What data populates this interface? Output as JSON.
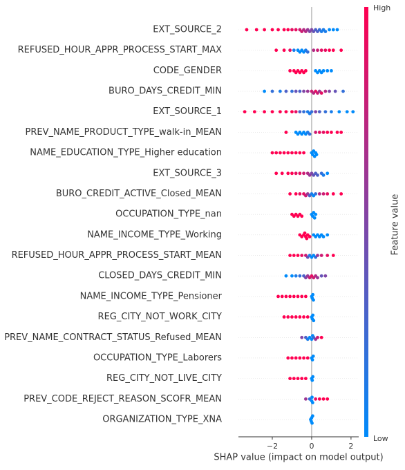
{
  "chart_data": {
    "type": "beeswarm",
    "xlabel": "SHAP value (impact on model output)",
    "xlim": [
      -3.72,
      2.39
    ],
    "xticks": [
      {
        "value": -2,
        "label": "−2"
      },
      0,
      2
    ],
    "colorbar": {
      "label": "Feature value",
      "high_label": "High",
      "low_label": "Low",
      "low_color": "#008bfb",
      "high_color": "#ff0051"
    },
    "features": [
      {
        "name": "EXT_SOURCE_2",
        "shap": [
          -3.3,
          -2.8,
          -2.4,
          -2.0,
          -1.7,
          -1.4,
          -1.2,
          -1.0,
          -0.8,
          -0.6,
          -0.5,
          -0.4,
          -0.3,
          -0.2,
          -0.1,
          0,
          0.1,
          0.2,
          0.3,
          0.4,
          0.5,
          0.6,
          0.7,
          0.9,
          1.1,
          1.3
        ],
        "feature_value": [
          1,
          1,
          1,
          1,
          1,
          1,
          1,
          0.9,
          0.9,
          0.8,
          0.8,
          0.7,
          0.7,
          0.6,
          0.5,
          0.5,
          0.4,
          0.3,
          0.3,
          0.2,
          0.1,
          0.1,
          0.1,
          0,
          0,
          0
        ]
      },
      {
        "name": "REFUSED_HOUR_APPR_PROCESS_START_MAX",
        "shap": [
          -1.8,
          -1.4,
          -1.1,
          -0.9,
          -0.7,
          -0.6,
          -0.5,
          -0.4,
          -0.3,
          -0.2,
          0.1,
          0.3,
          0.5,
          0.7,
          0.9,
          1.1,
          1.5
        ],
        "feature_value": [
          1,
          1,
          0.9,
          0.1,
          0,
          0,
          0,
          0,
          0.1,
          0.2,
          0.7,
          0.8,
          0.9,
          0.9,
          1,
          1,
          1
        ]
      },
      {
        "name": "CODE_GENDER",
        "shap": [
          -1.1,
          -0.9,
          -0.8,
          -0.7,
          -0.6,
          -0.5,
          -0.4,
          -0.3,
          0.2,
          0.3,
          0.4,
          0.5,
          0.6,
          0.8,
          1.0
        ],
        "feature_value": [
          1,
          1,
          1,
          1,
          1,
          1,
          1,
          1,
          0,
          0,
          0,
          0,
          0,
          0,
          0
        ]
      },
      {
        "name": "BURO_DAYS_CREDIT_MIN",
        "shap": [
          -2.4,
          -2.0,
          -1.6,
          -1.3,
          -1.0,
          -0.8,
          -0.6,
          -0.4,
          -0.2,
          0,
          0.1,
          0.2,
          0.3,
          0.4,
          0.5,
          0.7,
          0.9,
          1.2,
          1.6
        ],
        "feature_value": [
          0,
          0.2,
          0.1,
          0.3,
          0.2,
          0.4,
          0.3,
          0.5,
          0.6,
          0.8,
          0.7,
          0.9,
          0.8,
          0.6,
          0.9,
          0.7,
          0.5,
          0.4,
          0.2
        ]
      },
      {
        "name": "EXT_SOURCE_1",
        "shap": [
          -3.4,
          -2.9,
          -2.4,
          -2.0,
          -1.6,
          -1.3,
          -1.0,
          -0.8,
          -0.6,
          -0.4,
          -0.2,
          -0.1,
          0,
          0.2,
          0.4,
          0.7,
          1.0,
          1.4,
          1.8,
          2.1
        ],
        "feature_value": [
          1,
          1,
          1,
          1,
          1,
          1,
          1,
          0.9,
          0.3,
          0.2,
          0.1,
          0.1,
          0.2,
          0.5,
          0.3,
          0.2,
          0.1,
          0,
          0,
          0
        ]
      },
      {
        "name": "PREV_NAME_PRODUCT_TYPE_walk-in_MEAN",
        "shap": [
          -1.3,
          -0.8,
          -0.7,
          -0.6,
          -0.5,
          -0.4,
          -0.3,
          -0.2,
          -0.1,
          0.2,
          0.4,
          0.6,
          0.8,
          1.0,
          1.3,
          1.5
        ],
        "feature_value": [
          1,
          0,
          0,
          0,
          0,
          0,
          0,
          0.1,
          0.2,
          0.8,
          0.9,
          0.9,
          1,
          1,
          1,
          1
        ]
      },
      {
        "name": "NAME_EDUCATION_TYPE_Higher education",
        "shap": [
          -2.0,
          -1.8,
          -1.6,
          -1.4,
          -1.2,
          -1.0,
          -0.8,
          -0.6,
          -0.4,
          0,
          0.05,
          0.1,
          0.15,
          0.2,
          0.25
        ],
        "feature_value": [
          1,
          1,
          1,
          1,
          1,
          1,
          1,
          1,
          1,
          0,
          0,
          0,
          0,
          0,
          0
        ]
      },
      {
        "name": "EXT_SOURCE_3",
        "shap": [
          -1.8,
          -1.5,
          -1.2,
          -1.0,
          -0.8,
          -0.6,
          -0.4,
          -0.2,
          -0.1,
          0,
          0.1,
          0.2,
          0.3,
          0.5,
          0.6,
          0.8
        ],
        "feature_value": [
          1,
          1,
          1,
          1,
          0.9,
          0.9,
          0.8,
          0.7,
          0.6,
          0.5,
          0.4,
          0.3,
          0.3,
          0.2,
          0.1,
          0
        ]
      },
      {
        "name": "BURO_CREDIT_ACTIVE_Closed_MEAN",
        "shap": [
          -1.1,
          -0.8,
          -0.6,
          -0.4,
          -0.3,
          -0.2,
          -0.1,
          0,
          0.1,
          0.2,
          0.4,
          0.6,
          0.8,
          1.1,
          1.5
        ],
        "feature_value": [
          1,
          1,
          0.9,
          0.9,
          0.8,
          0.6,
          0.3,
          0.1,
          0,
          0.2,
          0.7,
          0.8,
          0.9,
          1,
          1
        ]
      },
      {
        "name": "OCCUPATION_TYPE_nan",
        "shap": [
          -1.0,
          -0.9,
          -0.8,
          -0.7,
          -0.6,
          -0.5,
          0,
          0.05,
          0.1,
          0.15,
          0.2
        ],
        "feature_value": [
          1,
          1,
          1,
          1,
          1,
          1,
          0,
          0,
          0,
          0,
          0
        ]
      },
      {
        "name": "NAME_INCOME_TYPE_Working",
        "shap": [
          -0.6,
          -0.5,
          -0.4,
          -0.35,
          -0.3,
          -0.25,
          -0.2,
          -0.1,
          0.1,
          0.2,
          0.3,
          0.4,
          0.5,
          0.6,
          0.8
        ],
        "feature_value": [
          1,
          1,
          1,
          1,
          1,
          1,
          1,
          1,
          0,
          0,
          0,
          0,
          0,
          0,
          0
        ]
      },
      {
        "name": "REFUSED_HOUR_APPR_PROCESS_START_MEAN",
        "shap": [
          -1.1,
          -0.9,
          -0.7,
          -0.5,
          -0.3,
          -0.2,
          -0.1,
          0,
          0.1,
          0.2,
          0.3,
          0.5,
          0.8,
          1.1
        ],
        "feature_value": [
          1,
          1,
          1,
          0.9,
          0.8,
          0.4,
          0.1,
          0,
          0,
          0.2,
          0.6,
          0.8,
          0.9,
          1
        ]
      },
      {
        "name": "CLOSED_DAYS_CREDIT_MIN",
        "shap": [
          -1.3,
          -1.0,
          -0.8,
          -0.6,
          -0.4,
          -0.3,
          -0.2,
          -0.1,
          0,
          0.1,
          0.2,
          0.3,
          0.5,
          0.7
        ],
        "feature_value": [
          0,
          0,
          0.1,
          0.2,
          0.3,
          0.5,
          0.6,
          0.8,
          0.9,
          0.8,
          0.7,
          0.6,
          0.4,
          0.5
        ]
      },
      {
        "name": "NAME_INCOME_TYPE_Pensioner",
        "shap": [
          -1.7,
          -1.5,
          -1.3,
          -1.1,
          -0.9,
          -0.7,
          -0.5,
          -0.3,
          0,
          0.03,
          0.06,
          0.09
        ],
        "feature_value": [
          1,
          1,
          1,
          1,
          1,
          1,
          1,
          1,
          0,
          0,
          0,
          0
        ]
      },
      {
        "name": "REG_CITY_NOT_WORK_CITY",
        "shap": [
          -1.4,
          -1.2,
          -1.0,
          -0.8,
          -0.6,
          -0.4,
          -0.2,
          0,
          0.03,
          0.06,
          0.1
        ],
        "feature_value": [
          1,
          1,
          1,
          1,
          1,
          1,
          1,
          0,
          0,
          0,
          0
        ]
      },
      {
        "name": "PREV_NAME_CONTRACT_STATUS_Refused_MEAN",
        "shap": [
          -0.5,
          -0.3,
          -0.2,
          -0.1,
          0,
          0.05,
          0.1,
          0.2,
          0.3,
          0.5
        ],
        "feature_value": [
          0.5,
          0.3,
          0.1,
          0,
          0,
          0,
          0.2,
          0.6,
          0.8,
          1
        ]
      },
      {
        "name": "OCCUPATION_TYPE_Laborers",
        "shap": [
          -1.2,
          -1.0,
          -0.8,
          -0.6,
          -0.4,
          -0.2,
          0,
          0.04,
          0.08
        ],
        "feature_value": [
          1,
          1,
          1,
          1,
          1,
          1,
          0,
          0,
          0
        ]
      },
      {
        "name": "REG_CITY_NOT_LIVE_CITY",
        "shap": [
          -1.1,
          -0.9,
          -0.7,
          -0.5,
          -0.3,
          0,
          0.03,
          0.06
        ],
        "feature_value": [
          1,
          1,
          1,
          1,
          1,
          0,
          0,
          0
        ]
      },
      {
        "name": "PREV_CODE_REJECT_REASON_SCOFR_MEAN",
        "shap": [
          -0.3,
          -0.1,
          0,
          0.02,
          0.05,
          0.2,
          0.4,
          0.6,
          0.8
        ],
        "feature_value": [
          0.6,
          0.2,
          0,
          0,
          0,
          0.9,
          1,
          1,
          1
        ]
      },
      {
        "name": "ORGANIZATION_TYPE_XNA",
        "shap": [
          -0.05,
          -0.02,
          0,
          0.02,
          0.05
        ],
        "feature_value": [
          0,
          0,
          0,
          0,
          0
        ]
      }
    ]
  }
}
